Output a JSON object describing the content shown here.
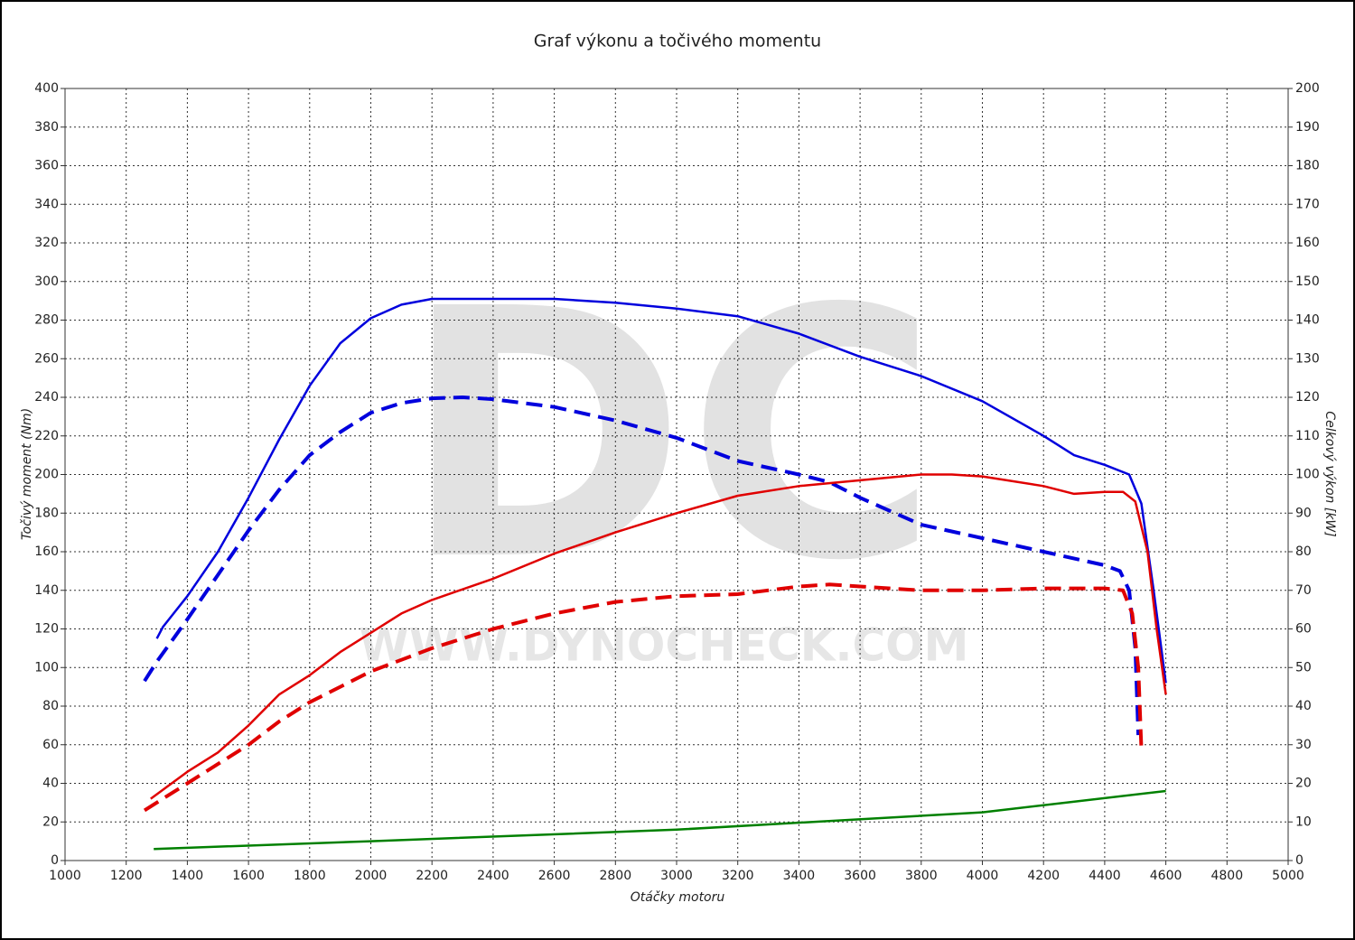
{
  "chart_data": {
    "type": "line",
    "title": "Graf výkonu a točivého momentu",
    "x_label": "Otáčky motoru",
    "y_label": "Točivý moment (Nm)",
    "y2_label": "Celkový výkon [kW]",
    "watermark": "DC",
    "watermark_url": "WWW.DYNOCHECK.COM",
    "xlim": [
      1000,
      5000
    ],
    "xticks": [
      1000,
      1200,
      1400,
      1600,
      1800,
      2000,
      2200,
      2400,
      2600,
      2800,
      3000,
      3200,
      3400,
      3600,
      3800,
      4000,
      4200,
      4400,
      4600,
      4800,
      5000
    ],
    "ylim": [
      0,
      400
    ],
    "yticks": [
      0,
      20,
      40,
      60,
      80,
      100,
      120,
      140,
      160,
      180,
      200,
      220,
      240,
      260,
      280,
      300,
      320,
      340,
      360,
      380,
      400
    ],
    "y2lim": [
      0,
      200
    ],
    "y2ticks": [
      0,
      10,
      20,
      30,
      40,
      50,
      60,
      70,
      80,
      90,
      100,
      110,
      120,
      130,
      140,
      150,
      160,
      170,
      180,
      190,
      200
    ],
    "grid": true,
    "series": [
      {
        "color": "#0000dd",
        "dashed": false,
        "x": [
          1300,
          1320,
          1350,
          1400,
          1500,
          1600,
          1700,
          1800,
          1900,
          2000,
          2100,
          2200,
          2400,
          2600,
          2800,
          3000,
          3200,
          3400,
          3600,
          3800,
          4000,
          4200,
          4300,
          4400,
          4480,
          4520,
          4560,
          4600
        ],
        "values": [
          115,
          121,
          127,
          137,
          160,
          188,
          218,
          246,
          268,
          281,
          288,
          291,
          291,
          291,
          289,
          286,
          282,
          273,
          261,
          251,
          238,
          220,
          210,
          205,
          200,
          185,
          140,
          92
        ]
      },
      {
        "color": "#0000dd",
        "dashed": true,
        "x": [
          1260,
          1300,
          1400,
          1500,
          1600,
          1700,
          1800,
          1900,
          2000,
          2100,
          2200,
          2300,
          2400,
          2600,
          2800,
          3000,
          3200,
          3400,
          3500,
          3600,
          3800,
          4000,
          4200,
          4400,
          4450,
          4480,
          4500,
          4510
        ],
        "values": [
          93,
          103,
          125,
          148,
          171,
          192,
          210,
          222,
          232,
          237,
          239.5,
          240,
          239,
          235,
          228,
          219,
          207,
          200,
          196,
          188,
          174,
          167,
          160,
          153,
          150,
          140,
          110,
          65
        ]
      },
      {
        "color": "#e00000",
        "dashed": false,
        "axis": "y2",
        "x": [
          1280,
          1400,
          1500,
          1600,
          1700,
          1800,
          1900,
          2000,
          2100,
          2200,
          2400,
          2600,
          2800,
          3000,
          3200,
          3400,
          3600,
          3800,
          3900,
          4000,
          4200,
          4300,
          4400,
          4460,
          4500,
          4540,
          4570,
          4600
        ],
        "values": [
          16,
          23,
          28,
          35,
          43,
          48,
          54,
          59,
          64,
          67.5,
          73,
          79.5,
          85,
          90,
          94.5,
          97,
          98.5,
          100,
          100,
          99.5,
          97,
          95,
          95.5,
          95.5,
          93,
          80,
          60,
          43
        ]
      },
      {
        "color": "#e00000",
        "dashed": true,
        "axis": "y2",
        "x": [
          1260,
          1400,
          1500,
          1600,
          1700,
          1800,
          1900,
          2000,
          2200,
          2400,
          2600,
          2800,
          3000,
          3200,
          3400,
          3500,
          3600,
          3800,
          4000,
          4200,
          4400,
          4460,
          4490,
          4510,
          4520
        ],
        "values": [
          13,
          20,
          25,
          30,
          36,
          41,
          45,
          49,
          55,
          60,
          64,
          67,
          68.5,
          69,
          71,
          71.5,
          71,
          70,
          70,
          70.5,
          70.5,
          70,
          64,
          50,
          29
        ]
      },
      {
        "color": "#008000",
        "dashed": false,
        "axis": "y2",
        "x": [
          1290,
          2000,
          3000,
          4000,
          4600
        ],
        "values": [
          3,
          5,
          8,
          12.5,
          18
        ]
      }
    ]
  }
}
